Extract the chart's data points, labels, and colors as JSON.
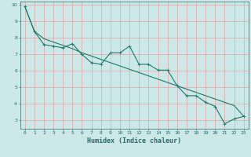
{
  "xlabel": "Humidex (Indice chaleur)",
  "background_color": "#cce8e8",
  "grid_color": "#e8a0a0",
  "line_color": "#1a7a6a",
  "xlim": [
    -0.5,
    23.5
  ],
  "ylim": [
    2.5,
    10.2
  ],
  "yticks": [
    3,
    4,
    5,
    6,
    7,
    8,
    9,
    10
  ],
  "xticks": [
    0,
    1,
    2,
    3,
    4,
    5,
    6,
    7,
    8,
    9,
    10,
    11,
    12,
    13,
    14,
    15,
    16,
    17,
    18,
    19,
    20,
    21,
    22,
    23
  ],
  "series1_x": [
    0,
    1,
    2,
    3,
    4,
    5,
    6,
    7,
    8,
    9,
    10,
    11,
    12,
    13,
    14,
    15,
    16,
    17,
    18,
    19,
    20,
    21,
    22,
    23
  ],
  "series1_y": [
    9.9,
    8.4,
    7.6,
    7.5,
    7.4,
    7.65,
    7.0,
    6.5,
    6.4,
    7.1,
    7.1,
    7.5,
    6.4,
    6.4,
    6.05,
    6.05,
    5.1,
    4.5,
    4.5,
    4.1,
    3.85,
    2.8,
    3.1,
    3.25
  ],
  "trend_x": [
    0,
    1,
    2,
    3,
    4,
    5,
    6,
    7,
    8,
    9,
    10,
    11,
    12,
    13,
    14,
    15,
    16,
    17,
    18,
    19,
    20,
    21,
    22,
    23
  ],
  "trend_y": [
    9.9,
    8.4,
    7.95,
    7.75,
    7.55,
    7.35,
    7.1,
    6.9,
    6.7,
    6.5,
    6.3,
    6.1,
    5.9,
    5.7,
    5.5,
    5.3,
    5.1,
    4.9,
    4.7,
    4.5,
    4.3,
    4.1,
    3.9,
    3.25
  ],
  "marker_size": 2.5,
  "line_width": 0.8,
  "font_color": "#2a6a6a",
  "tick_fontsize": 4.5,
  "label_fontsize": 6.0
}
